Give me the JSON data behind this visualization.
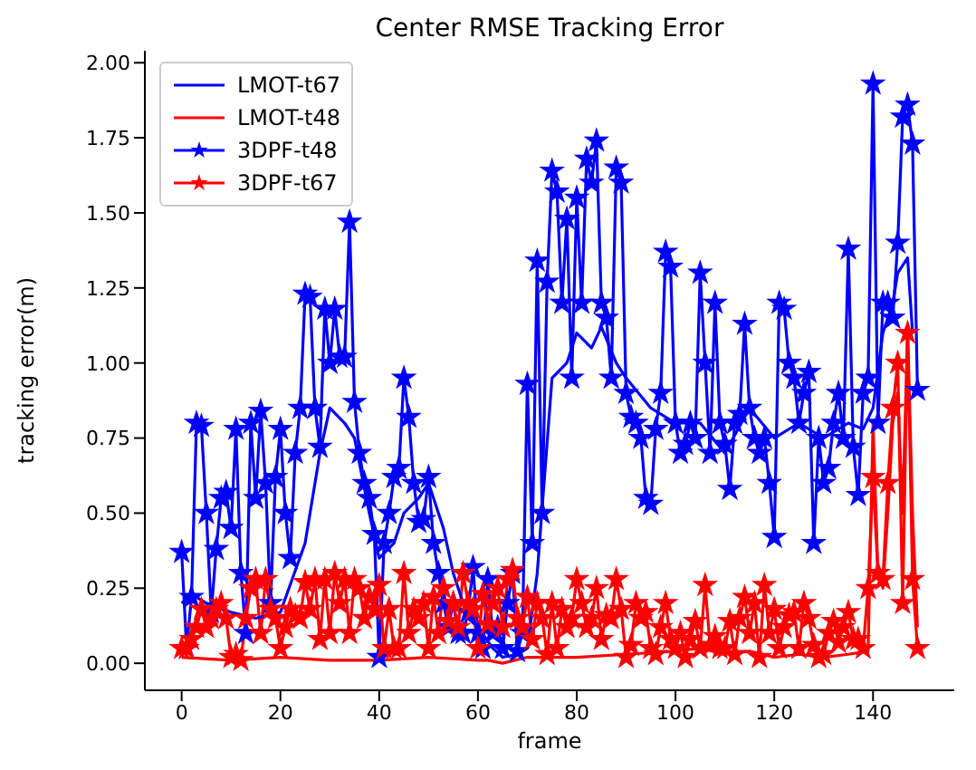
{
  "chart_data": {
    "type": "line",
    "title": "Center RMSE Tracking Error",
    "xlabel": "frame",
    "ylabel": "tracking error(m)",
    "xlim": [
      -7.45,
      156.45
    ],
    "xticks": [
      0,
      20,
      40,
      60,
      80,
      100,
      120,
      140
    ],
    "ylim": [
      -0.09,
      2.04
    ],
    "yticks": [
      {
        "value": 0,
        "label": "0.00"
      },
      {
        "value": 0.25,
        "label": "0.25"
      },
      {
        "value": 0.5,
        "label": "0.50"
      },
      {
        "value": 0.75,
        "label": "0.75"
      },
      {
        "value": 1,
        "label": "1.00"
      },
      {
        "value": 1.25,
        "label": "1.25"
      },
      {
        "value": 1.5,
        "label": "1.50"
      },
      {
        "value": 1.75,
        "label": "1.75"
      },
      {
        "value": 2,
        "label": "2.00"
      }
    ],
    "legend": "top left",
    "grid": false,
    "x": [
      0,
      1,
      2,
      3,
      4,
      5,
      6,
      7,
      8,
      9,
      10,
      11,
      12,
      13,
      14,
      15,
      16,
      17,
      18,
      19,
      20,
      21,
      22,
      23,
      24,
      25,
      26,
      27,
      28,
      29,
      30,
      31,
      32,
      33,
      34,
      35,
      36,
      37,
      38,
      39,
      40,
      41,
      42,
      43,
      44,
      45,
      46,
      47,
      48,
      49,
      50,
      51,
      52,
      53,
      54,
      55,
      56,
      57,
      58,
      59,
      60,
      61,
      62,
      63,
      64,
      65,
      66,
      67,
      68,
      69,
      70,
      71,
      72,
      73,
      74,
      75,
      76,
      77,
      78,
      79,
      80,
      81,
      82,
      83,
      84,
      85,
      86,
      87,
      88,
      89,
      90,
      91,
      92,
      93,
      94,
      95,
      96,
      97,
      98,
      99,
      100,
      101,
      102,
      103,
      104,
      105,
      106,
      107,
      108,
      109,
      110,
      111,
      112,
      113,
      114,
      115,
      116,
      117,
      118,
      119,
      120,
      121,
      122,
      123,
      124,
      125,
      126,
      127,
      128,
      129,
      130,
      131,
      132,
      133,
      134,
      135,
      136,
      137,
      138,
      139,
      140,
      141,
      142,
      143,
      144,
      145,
      146,
      147,
      148,
      149
    ],
    "series": [
      {
        "name": "LMOT-t67",
        "color": "#0000ff",
        "marker": "none",
        "x": [
          0,
          2,
          5,
          10,
          15,
          20,
          25,
          28,
          30,
          33,
          35,
          38,
          40,
          43,
          45,
          48,
          50,
          53,
          55,
          58,
          60,
          63,
          65,
          68,
          70,
          72,
          75,
          78,
          80,
          83,
          85,
          88,
          90,
          95,
          100,
          105,
          110,
          115,
          120,
          125,
          130,
          135,
          138,
          140,
          142,
          144,
          145,
          147,
          148
        ],
        "values": [
          0.2,
          0.23,
          0.2,
          0.17,
          0.15,
          0.17,
          0.4,
          0.7,
          0.85,
          0.8,
          0.75,
          0.5,
          0.35,
          0.4,
          0.5,
          0.55,
          0.6,
          0.45,
          0.3,
          0.15,
          0.12,
          0.05,
          0.02,
          0.03,
          0.05,
          0.3,
          0.95,
          1.0,
          1.1,
          1.05,
          1.12,
          1.0,
          0.95,
          0.85,
          0.8,
          0.8,
          0.7,
          0.85,
          0.75,
          0.8,
          0.75,
          0.8,
          0.78,
          0.85,
          1.1,
          1.2,
          1.3,
          1.35,
          1.1
        ]
      },
      {
        "name": "LMOT-t48",
        "color": "#ff0000",
        "marker": "none",
        "x": [
          0,
          10,
          20,
          30,
          40,
          50,
          60,
          62,
          65,
          70,
          80,
          90,
          100,
          105,
          110,
          115,
          120,
          125,
          130,
          135,
          139,
          140,
          141,
          142,
          143,
          144,
          145,
          146,
          147,
          148,
          149
        ],
        "values": [
          0.02,
          0.01,
          0.02,
          0.01,
          0.01,
          0.02,
          0.01,
          0.01,
          0.0,
          0.02,
          0.02,
          0.03,
          0.04,
          0.05,
          0.03,
          0.04,
          0.02,
          0.03,
          0.02,
          0.03,
          0.04,
          0.8,
          0.3,
          0.25,
          0.5,
          0.8,
          0.9,
          0.5,
          1.12,
          0.5,
          0.12
        ]
      },
      {
        "name": "3DPF-t48",
        "color": "#0000ff",
        "marker": "star",
        "values": [
          0.37,
          0.05,
          0.22,
          0.8,
          0.79,
          0.5,
          0.17,
          0.38,
          0.55,
          0.57,
          0.45,
          0.78,
          0.3,
          0.1,
          0.8,
          0.55,
          0.84,
          0.6,
          0.2,
          0.62,
          0.78,
          0.5,
          0.35,
          0.7,
          0.85,
          1.23,
          1.22,
          0.85,
          0.72,
          1.18,
          1.0,
          1.18,
          1.02,
          1.02,
          1.47,
          0.87,
          0.7,
          0.6,
          0.55,
          0.43,
          0.02,
          0.4,
          0.5,
          0.62,
          0.65,
          0.95,
          0.82,
          0.6,
          0.47,
          0.48,
          0.62,
          0.4,
          0.3,
          0.2,
          0.12,
          0.2,
          0.1,
          0.1,
          0.17,
          0.32,
          0.1,
          0.05,
          0.28,
          0.1,
          0.12,
          0.05,
          0.2,
          0.3,
          0.04,
          0.1,
          0.93,
          0.4,
          1.34,
          0.5,
          1.27,
          1.64,
          1.57,
          1.2,
          1.48,
          0.95,
          1.55,
          1.2,
          1.68,
          1.6,
          1.74,
          1.2,
          1.15,
          0.95,
          1.65,
          1.6,
          0.9,
          0.82,
          0.8,
          0.75,
          0.55,
          0.53,
          0.78,
          0.9,
          1.37,
          1.32,
          0.8,
          0.7,
          0.73,
          0.8,
          0.75,
          1.3,
          1.0,
          0.7,
          1.2,
          0.8,
          0.73,
          0.58,
          0.8,
          0.83,
          1.13,
          0.85,
          0.75,
          0.7,
          0.75,
          0.6,
          0.42,
          1.2,
          1.18,
          1.0,
          0.95,
          0.8,
          0.9,
          0.97,
          0.4,
          0.75,
          0.6,
          0.65,
          0.8,
          0.9,
          0.75,
          1.38,
          0.72,
          0.56,
          0.9,
          0.95,
          1.93,
          0.8,
          1.2,
          1.2,
          1.15,
          1.4,
          1.82,
          1.86,
          1.73,
          0.91
        ]
      },
      {
        "name": "3DPF-t67",
        "color": "#ff0000",
        "marker": "star",
        "values": [
          0.05,
          0.05,
          0.08,
          0.12,
          0.18,
          0.12,
          0.15,
          0.18,
          0.2,
          0.15,
          0.02,
          0.03,
          0.01,
          0.15,
          0.25,
          0.28,
          0.1,
          0.28,
          0.18,
          0.15,
          0.05,
          0.12,
          0.18,
          0.16,
          0.15,
          0.27,
          0.18,
          0.28,
          0.08,
          0.28,
          0.1,
          0.3,
          0.2,
          0.28,
          0.1,
          0.28,
          0.25,
          0.15,
          0.22,
          0.18,
          0.26,
          0.05,
          0.18,
          0.05,
          0.05,
          0.3,
          0.1,
          0.18,
          0.15,
          0.2,
          0.05,
          0.22,
          0.1,
          0.25,
          0.14,
          0.2,
          0.12,
          0.3,
          0.2,
          0.18,
          0.05,
          0.23,
          0.13,
          0.2,
          0.25,
          0.12,
          0.28,
          0.31,
          0.15,
          0.12,
          0.22,
          0.08,
          0.2,
          0.15,
          0.03,
          0.2,
          0.05,
          0.18,
          0.12,
          0.15,
          0.28,
          0.2,
          0.12,
          0.15,
          0.25,
          0.08,
          0.16,
          0.15,
          0.28,
          0.18,
          0.02,
          0.06,
          0.2,
          0.15,
          0.17,
          0.05,
          0.03,
          0.12,
          0.2,
          0.08,
          0.05,
          0.1,
          0.02,
          0.08,
          0.14,
          0.05,
          0.26,
          0.06,
          0.09,
          0.05,
          0.05,
          0.14,
          0.03,
          0.15,
          0.22,
          0.1,
          0.2,
          0.02,
          0.26,
          0.1,
          0.18,
          0.05,
          0.12,
          0.16,
          0.17,
          0.05,
          0.2,
          0.15,
          0.06,
          0.02,
          0.03,
          0.1,
          0.14,
          0.07,
          0.12,
          0.17,
          0.08,
          0.08,
          0.05,
          0.25,
          0.62,
          0.3,
          0.28,
          0.6,
          0.85,
          1.0,
          0.2,
          1.1,
          0.28,
          0.05
        ]
      }
    ]
  }
}
